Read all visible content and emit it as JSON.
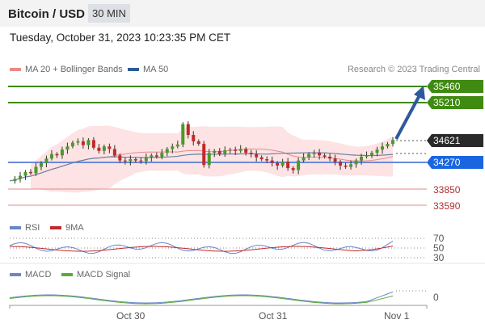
{
  "header": {
    "title": "Bitcoin / USD",
    "timeframe": "30 MIN"
  },
  "date": "Tuesday, October 31, 2023 10:23:35 PM CET",
  "legend": {
    "ma20": "MA 20 + Bollinger Bands",
    "ma50": "MA 50",
    "credit": "Research © 2023 Trading Central"
  },
  "rsi_legend": {
    "rsi": "RSI",
    "ma": "9MA"
  },
  "macd_legend": {
    "macd": "MACD",
    "signal": "MACD Signal"
  },
  "colors": {
    "up": "#4a9a2a",
    "down": "#c02a2a",
    "resistance": "#3f8a10",
    "support": "#1a66e0",
    "last": "#2a2a2a",
    "ma20": "#e88a8a",
    "ma50": "#2d5a9a",
    "band": "#fde3e3",
    "arrow": "#2d5a9a"
  },
  "chart_data": {
    "type": "candlestick",
    "x_ticks": [
      "Oct 30",
      "Oct 31",
      "Nov 1"
    ],
    "closes": [
      33980,
      34010,
      34060,
      34120,
      34100,
      34200,
      34260,
      34330,
      34400,
      34380,
      34470,
      34520,
      34580,
      34600,
      34540,
      34620,
      34500,
      34450,
      34520,
      34480,
      34380,
      34300,
      34290,
      34320,
      34300,
      34290,
      34350,
      34380,
      34360,
      34420,
      34480,
      34520,
      34550,
      34870,
      34700,
      34600,
      34560,
      34230,
      34420,
      34450,
      34400,
      34460,
      34470,
      34450,
      34480,
      34420,
      34400,
      34350,
      34320,
      34300,
      34260,
      34220,
      34280,
      34180,
      34150,
      34300,
      34350,
      34400,
      34420,
      34380,
      34360,
      34330,
      34280,
      34220,
      34200,
      34240,
      34300,
      34360,
      34380,
      34420,
      34470,
      34520,
      34560,
      34621
    ],
    "levels": {
      "resistance": [
        35460,
        35210
      ],
      "last": 34621,
      "pivot": 34270,
      "support": [
        33850,
        33590
      ]
    },
    "target_arrow": {
      "from": 34621,
      "to": 35460
    },
    "rsi_levels": [
      70,
      50,
      30
    ],
    "macd_levels": [
      0
    ]
  }
}
